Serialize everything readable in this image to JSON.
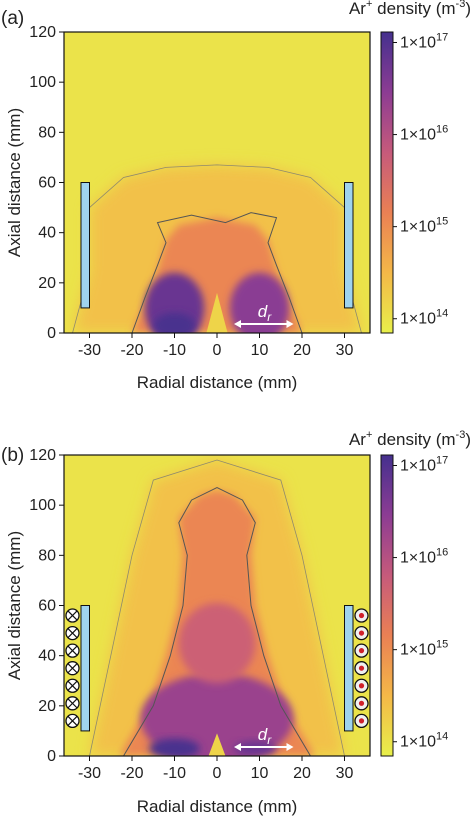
{
  "chart_data": [
    {
      "type": "heatmap",
      "panel_label": "(a)",
      "xlabel": "Radial distance (mm)",
      "ylabel": "Axial distance (mm)",
      "xlim": [
        -36,
        36
      ],
      "ylim": [
        0,
        120
      ],
      "xticks": [
        -30,
        -20,
        -10,
        0,
        10,
        20,
        30
      ],
      "yticks": [
        0,
        20,
        40,
        60,
        80,
        100,
        120
      ],
      "xtick_labels": [
        "-30",
        "-20",
        "-10",
        "0",
        "10",
        "20",
        "30"
      ],
      "ytick_labels": [
        "0",
        "20",
        "40",
        "60",
        "80",
        "100",
        "120"
      ],
      "colorbar": {
        "title_main": "Ar",
        "title_sup": "+",
        "title_rest": " density (m",
        "title_unit_sup": "-3",
        "title_end": ")",
        "scale": "log",
        "range": [
          70000000000000.0,
          1.3e+17
        ],
        "ticks": [
          {
            "value": 100000000000000.0,
            "mantissa": "1×10",
            "exp": "14"
          },
          {
            "value": 1000000000000000.0,
            "mantissa": "1×10",
            "exp": "15"
          },
          {
            "value": 1e+16,
            "mantissa": "1×10",
            "exp": "16"
          },
          {
            "value": 1e+17,
            "mantissa": "1×10",
            "exp": "17"
          }
        ],
        "colors": [
          "#e8f04a",
          "#f4b848",
          "#ea8054",
          "#c65a7b",
          "#8c3c93",
          "#45308e"
        ]
      },
      "annotation": {
        "label": "d",
        "sub": "r",
        "x_from": 4,
        "x_to": 18,
        "y": 2
      },
      "electrodes": [
        {
          "x0": -32,
          "x1": -30,
          "y0": 10,
          "y1": 60
        },
        {
          "x0": 30,
          "x1": 32,
          "y0": 10,
          "y1": 60
        }
      ],
      "coils": null,
      "regions": {
        "background_density": 100000000000000.0,
        "outer_halo": [
          [
            -34,
            0
          ],
          [
            -30,
            25
          ],
          [
            -30,
            50
          ],
          [
            -22,
            62
          ],
          [
            -12,
            66
          ],
          [
            0,
            67
          ],
          [
            12,
            66
          ],
          [
            22,
            62
          ],
          [
            30,
            50
          ],
          [
            30,
            25
          ],
          [
            34,
            0
          ]
        ],
        "plasma": [
          [
            -20,
            0
          ],
          [
            -17,
            12
          ],
          [
            -14,
            25
          ],
          [
            -12,
            37
          ],
          [
            -9,
            43
          ],
          [
            0,
            46
          ],
          [
            9,
            43
          ],
          [
            12,
            37
          ],
          [
            14,
            25
          ],
          [
            17,
            12
          ],
          [
            20,
            0
          ]
        ],
        "contour": [
          [
            -20,
            0
          ],
          [
            -17,
            14
          ],
          [
            -14,
            27
          ],
          [
            -12,
            36
          ],
          [
            -14,
            44
          ],
          [
            -6,
            47
          ],
          [
            2,
            44
          ],
          [
            8,
            48
          ],
          [
            14,
            46
          ],
          [
            12,
            36
          ],
          [
            14,
            27
          ],
          [
            17,
            14
          ],
          [
            20,
            0
          ]
        ],
        "lobes": [
          {
            "cx": -10,
            "cy": 10,
            "rx": 7,
            "ry": 14,
            "density": 6e+16
          },
          {
            "cx": 10,
            "cy": 10,
            "rx": 7,
            "ry": 14,
            "density": 3e+16
          }
        ],
        "cores": [
          {
            "cx": -10,
            "cy": 3,
            "rx": 5,
            "ry": 5,
            "density": 1.2e+17
          }
        ],
        "cone": [
          [
            -2.5,
            0
          ],
          [
            0,
            16
          ],
          [
            2.5,
            0
          ]
        ]
      }
    },
    {
      "type": "heatmap",
      "panel_label": "(b)",
      "xlabel": "Radial distance (mm)",
      "ylabel": "Axial distance (mm)",
      "xlim": [
        -36,
        36
      ],
      "ylim": [
        0,
        120
      ],
      "xticks": [
        -30,
        -20,
        -10,
        0,
        10,
        20,
        30
      ],
      "yticks": [
        0,
        20,
        40,
        60,
        80,
        100,
        120
      ],
      "xtick_labels": [
        "-30",
        "-20",
        "-10",
        "0",
        "10",
        "20",
        "30"
      ],
      "ytick_labels": [
        "0",
        "20",
        "40",
        "60",
        "80",
        "100",
        "120"
      ],
      "colorbar": {
        "title_main": "Ar",
        "title_sup": "+",
        "title_rest": " density (m",
        "title_unit_sup": "-3",
        "title_end": ")",
        "scale": "log",
        "range": [
          70000000000000.0,
          1.3e+17
        ],
        "ticks": [
          {
            "value": 100000000000000.0,
            "mantissa": "1×10",
            "exp": "14"
          },
          {
            "value": 1000000000000000.0,
            "mantissa": "1×10",
            "exp": "15"
          },
          {
            "value": 1e+16,
            "mantissa": "1×10",
            "exp": "16"
          },
          {
            "value": 1e+17,
            "mantissa": "1×10",
            "exp": "17"
          }
        ],
        "colors": [
          "#e8f04a",
          "#f4b848",
          "#ea8054",
          "#c65a7b",
          "#8c3c93",
          "#45308e"
        ]
      },
      "annotation": {
        "label": "d",
        "sub": "r",
        "x_from": 4,
        "x_to": 18,
        "y": 2
      },
      "electrodes": [
        {
          "x0": -32,
          "x1": -30,
          "y0": 10,
          "y1": 60
        },
        {
          "x0": 30,
          "x1": 32,
          "y0": 10,
          "y1": 60
        }
      ],
      "coils": {
        "left": {
          "x": -34,
          "symbol": "cross",
          "ys": [
            14,
            21,
            28,
            35,
            42,
            49,
            56
          ]
        },
        "right": {
          "x": 34,
          "symbol": "dot",
          "ys": [
            14,
            21,
            28,
            35,
            42,
            49,
            56
          ]
        }
      },
      "regions": {
        "background_density": 100000000000000.0,
        "outer_halo": [
          [
            -30,
            0
          ],
          [
            -25,
            40
          ],
          [
            -20,
            80
          ],
          [
            -15,
            110
          ],
          [
            0,
            118
          ],
          [
            15,
            110
          ],
          [
            20,
            80
          ],
          [
            25,
            40
          ],
          [
            30,
            0
          ]
        ],
        "plasma": [
          [
            -23,
            0
          ],
          [
            -16,
            20
          ],
          [
            -12,
            40
          ],
          [
            -9,
            60
          ],
          [
            -8,
            80
          ],
          [
            -9,
            95
          ],
          [
            -4,
            104
          ],
          [
            0,
            106
          ],
          [
            4,
            104
          ],
          [
            9,
            95
          ],
          [
            8,
            80
          ],
          [
            9,
            60
          ],
          [
            12,
            40
          ],
          [
            16,
            20
          ],
          [
            23,
            0
          ]
        ],
        "contour": [
          [
            -22,
            0
          ],
          [
            -15,
            20
          ],
          [
            -11,
            40
          ],
          [
            -8,
            60
          ],
          [
            -7,
            80
          ],
          [
            -9,
            93
          ],
          [
            -6,
            102
          ],
          [
            0,
            107
          ],
          [
            6,
            102
          ],
          [
            9,
            93
          ],
          [
            7,
            80
          ],
          [
            8,
            60
          ],
          [
            11,
            40
          ],
          [
            15,
            20
          ],
          [
            22,
            0
          ]
        ],
        "lobes": [
          {
            "cx": 0,
            "cy": 15,
            "rx": 18,
            "ry": 18,
            "density": 2e+16
          },
          {
            "cx": 0,
            "cy": 45,
            "rx": 9,
            "ry": 16,
            "density": 5000000000000000.0
          }
        ],
        "cores": [
          {
            "cx": -10,
            "cy": 3,
            "rx": 6,
            "ry": 4,
            "density": 1.2e+17
          },
          {
            "cx": 9,
            "cy": 3,
            "rx": 5,
            "ry": 3,
            "density": 6e+16
          }
        ],
        "cone": [
          [
            -2,
            0
          ],
          [
            0,
            9
          ],
          [
            2,
            0
          ]
        ]
      }
    }
  ]
}
